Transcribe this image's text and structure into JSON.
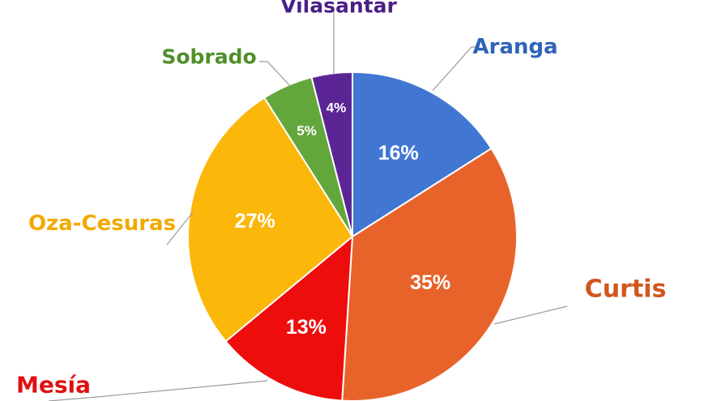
{
  "chart_data": {
    "type": "pie",
    "title": "",
    "legend": "none",
    "slices": [
      {
        "name": "Aranga",
        "value": 16,
        "label": "16%",
        "color": "#4177D2",
        "label_color": "#2F63B8"
      },
      {
        "name": "Curtis",
        "value": 35,
        "label": "35%",
        "color": "#E8632A",
        "label_color": "#D2561E"
      },
      {
        "name": "Mesía",
        "value": 13,
        "label": "13%",
        "color": "#EE0D0D",
        "label_color": "#E01010"
      },
      {
        "name": "Oza-Cesuras",
        "value": 27,
        "label": "27%",
        "color": "#FBB70A",
        "label_color": "#F2AA00"
      },
      {
        "name": "Sobrado",
        "value": 5,
        "label": "5%",
        "color": "#63A73C",
        "label_color": "#4F8F2A"
      },
      {
        "name": "Vilasantar",
        "value": 4,
        "label": "4%",
        "color": "#5C2596",
        "label_color": "#4A1F86"
      }
    ]
  }
}
